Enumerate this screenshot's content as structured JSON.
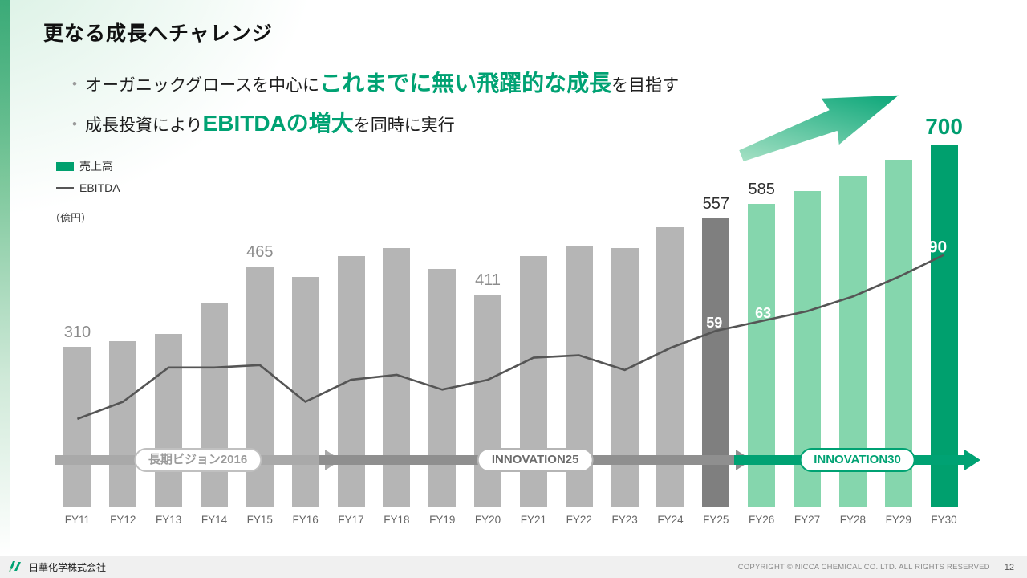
{
  "slide": {
    "title": "更なる成長へチャレンジ",
    "bullets": [
      {
        "pre": "オーガニックグロースを中心に",
        "highlight": "これまでに無い飛躍的な成長",
        "post": "を目指す"
      },
      {
        "pre": "成長投資により",
        "highlight": "EBITDAの増大",
        "post": "を同時に実行"
      }
    ]
  },
  "legend": {
    "sales_label": "売上高",
    "ebitda_label": "EBITDA",
    "unit_label": "（億円）"
  },
  "chart_data": {
    "type": "bar",
    "subtype": "bar + line combo",
    "title": "",
    "xlabel": "",
    "ylabel": "（億円）",
    "grid": false,
    "legend_position": "top-left",
    "ylim": [
      0,
      700
    ],
    "categories": [
      "FY11",
      "FY12",
      "FY13",
      "FY14",
      "FY15",
      "FY16",
      "FY17",
      "FY18",
      "FY19",
      "FY20",
      "FY21",
      "FY22",
      "FY23",
      "FY24",
      "FY25",
      "FY26",
      "FY27",
      "FY28",
      "FY29",
      "FY30"
    ],
    "series": [
      {
        "name": "売上高",
        "type": "bar",
        "values": [
          310,
          320,
          335,
          395,
          465,
          445,
          485,
          500,
          460,
          411,
          485,
          505,
          500,
          540,
          557,
          585,
          610,
          640,
          670,
          700
        ],
        "note": "unlabeled bars estimated from bar heights"
      },
      {
        "name": "EBITDA",
        "type": "line",
        "values": [
          23,
          30,
          44,
          44,
          45,
          30,
          39,
          41,
          35,
          39,
          48,
          49,
          43,
          52,
          59,
          63,
          67,
          73,
          81,
          90
        ],
        "note": "unlabeled points estimated from line position"
      }
    ],
    "labeled_values": {
      "売上高": {
        "FY11": 310,
        "FY15": 465,
        "FY20": 411,
        "FY25": 557,
        "FY26": 585,
        "FY30": 700
      },
      "EBITDA": {
        "FY25": 59,
        "FY26": 63,
        "FY30": 90
      }
    },
    "bar_value_labels": [
      {
        "category": "FY11",
        "text": "310",
        "color": "#8c8c8c",
        "size": 20,
        "bold": false
      },
      {
        "category": "FY15",
        "text": "465",
        "color": "#8c8c8c",
        "size": 20,
        "bold": false
      },
      {
        "category": "FY20",
        "text": "411",
        "color": "#8c8c8c",
        "size": 20,
        "bold": false
      },
      {
        "category": "FY25",
        "text": "557",
        "color": "#2e2e2e",
        "size": 20,
        "bold": false
      },
      {
        "category": "FY26",
        "text": "585",
        "color": "#2e2e2e",
        "size": 20,
        "bold": false
      },
      {
        "category": "FY30",
        "text": "700",
        "color": "#009e70",
        "size": 28,
        "bold": true
      }
    ],
    "line_value_labels": [
      {
        "category": "FY25",
        "text": "59",
        "color": "#ffffff",
        "size": 18,
        "dx": -2
      },
      {
        "category": "FY26",
        "text": "63",
        "color": "#ffffff",
        "size": 18,
        "dx": 2
      },
      {
        "category": "FY30",
        "text": "90",
        "color": "#ffffff",
        "size": 21,
        "dx": -8
      }
    ],
    "colors": {
      "bar_default": "#b5b5b5",
      "bars": {
        "FY25": "#7f7f7f",
        "FY26": "#85d6ad",
        "FY27": "#85d6ad",
        "FY28": "#85d6ad",
        "FY29": "#85d6ad",
        "FY30": "#00a06e"
      },
      "line": "#555555",
      "accent_green": "#00a273",
      "accent_green_light": "#a9e2c6"
    }
  },
  "phases": [
    {
      "label": "長期ビジョン2016",
      "from": "FY11",
      "to": "FY15",
      "arrow_color": "#a9a9a9",
      "border_color": "#c0c0c0",
      "text_color": "#9b9b9b"
    },
    {
      "label": "INNOVATION25",
      "from": "FY16",
      "to": "FY25",
      "arrow_color": "#8f8f8f",
      "border_color": "#b5b5b5",
      "text_color": "#6b6b6b"
    },
    {
      "label": "INNOVATION30",
      "from": "FY26",
      "to": "FY30",
      "arrow_color": "#00a273",
      "border_color": "#00a273",
      "text_color": "#00a273"
    }
  ],
  "footer": {
    "company": "日華化学株式会社",
    "copyright": "COPYRIGHT © NICCA CHEMICAL CO.,LTD. ALL RIGHTS RESERVED",
    "page_number": "12"
  }
}
